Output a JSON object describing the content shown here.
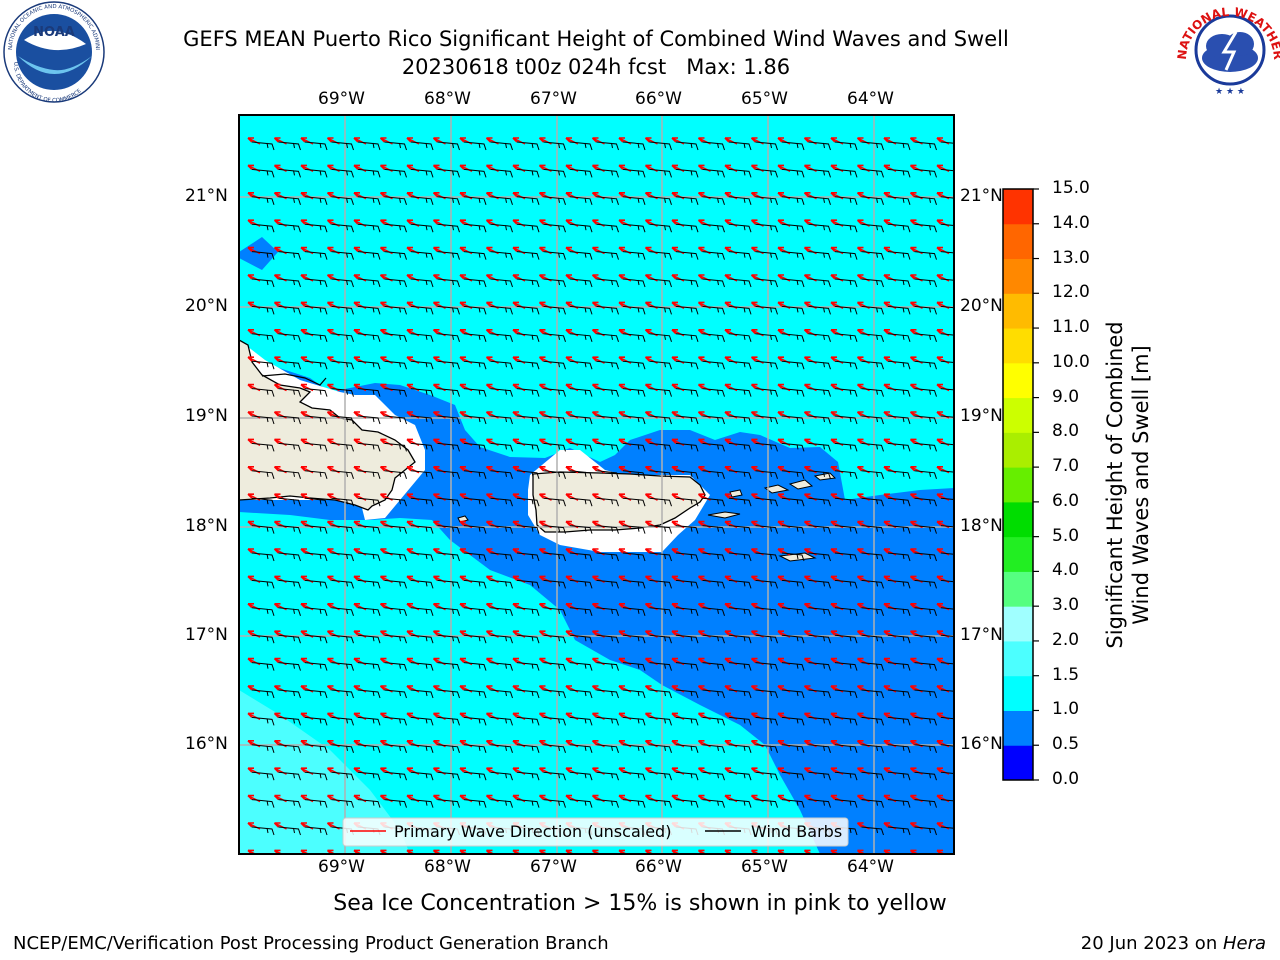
{
  "header": {
    "title_line1": "GEFS MEAN Puerto Rico Significant Height of Combined Wind Waves and Swell",
    "title_line2": "20230618 t00z 024h fcst   Max: 1.86",
    "logo_left_text": "NOAA",
    "logo_left_ring_top": "NATIONAL OCEANIC AND ATMOSPHERIC ADMINISTRATION",
    "logo_left_ring_bottom": "U.S. DEPARTMENT OF COMMERCE",
    "logo_right_ring": "NATIONAL WEATHER SERVICE"
  },
  "map": {
    "lon_labels": [
      "69°W",
      "68°W",
      "67°W",
      "66°W",
      "65°W",
      "64°W"
    ],
    "lat_labels": [
      "21°N",
      "20°N",
      "19°N",
      "18°N",
      "17°N",
      "16°N"
    ],
    "colors": {
      "ocean_high": "#00ffff",
      "ocean_low": "#0080ff",
      "ocean_mid": "#4cffff",
      "land": "#eeecdd",
      "grid": "#b0b0b0",
      "wave_arrow": "#ff0000",
      "barb": "#000000"
    }
  },
  "legend": {
    "wave_label": "Primary Wave Direction (unscaled)",
    "barb_label": "Wind Barbs"
  },
  "colorbar": {
    "title_line1": "Significant Height of Combined",
    "title_line2": "Wind Waves and Swell [m]",
    "ticks": [
      "0.0",
      "0.5",
      "1.0",
      "1.5",
      "2.0",
      "3.0",
      "4.0",
      "5.0",
      "6.0",
      "7.0",
      "8.0",
      "9.0",
      "10.0",
      "11.0",
      "12.0",
      "13.0",
      "14.0",
      "15.0"
    ],
    "colors": [
      "#0000ff",
      "#0080ff",
      "#00ffff",
      "#4cffff",
      "#a0ffff",
      "#55ff80",
      "#22ee22",
      "#00dd00",
      "#66ee00",
      "#aaee00",
      "#ccff00",
      "#ffff00",
      "#ffdd00",
      "#ffbb00",
      "#ff8800",
      "#ff6600",
      "#ff3300",
      "#ff0000"
    ]
  },
  "notes": {
    "sea_ice": "Sea Ice Concentration > 15% is shown in pink to yellow",
    "producer": "NCEP/EMC/Verification Post Processing Product Generation Branch",
    "date_prefix": "20 Jun 2023 on ",
    "machine": "Hera"
  }
}
